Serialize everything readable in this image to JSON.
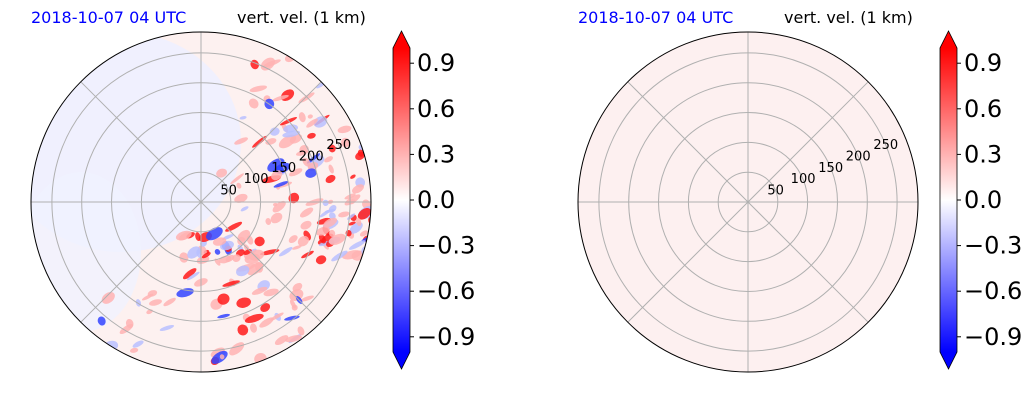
{
  "colors": {
    "timestamp": "#0000ff",
    "positive": "#ff0000",
    "negative": "#0000ff",
    "grid": "#b0b0b0",
    "outline": "#000000"
  },
  "chart_data": [
    {
      "type": "heatmap",
      "projection": "polar",
      "timestamp": "2018-10-07 04 UTC",
      "title": "vert. vel. (1 km)",
      "r_ticks": [
        50,
        100,
        150,
        200,
        250
      ],
      "r_max": 285,
      "angular_gridlines_deg": [
        0,
        45,
        90,
        135,
        180,
        225,
        270,
        315
      ],
      "grid": true,
      "colorbar": {
        "ticks": [
          "0.9",
          "0.6",
          "0.3",
          "0.0",
          "−0.3",
          "−0.6",
          "−0.9"
        ],
        "vmin": -1.0,
        "vmax": 1.0,
        "extend": "both",
        "cmap": "bwr"
      },
      "field_description": "scattered updraft/downdraft cells concentrated on east and southeast side"
    },
    {
      "type": "heatmap",
      "projection": "polar",
      "timestamp": "2018-10-07 04 UTC",
      "title": "vert. vel. (1 km)",
      "r_ticks": [
        50,
        100,
        150,
        200,
        250
      ],
      "r_max": 285,
      "angular_gridlines_deg": [
        0,
        45,
        90,
        135,
        180,
        225,
        270,
        315
      ],
      "grid": true,
      "colorbar": {
        "ticks": [
          "0.9",
          "0.6",
          "0.3",
          "0.0",
          "−0.3",
          "−0.6",
          "−0.9"
        ],
        "vmin": -1.0,
        "vmax": 1.0,
        "extend": "both",
        "cmap": "bwr"
      },
      "field_description": "uniform near-zero field"
    }
  ]
}
